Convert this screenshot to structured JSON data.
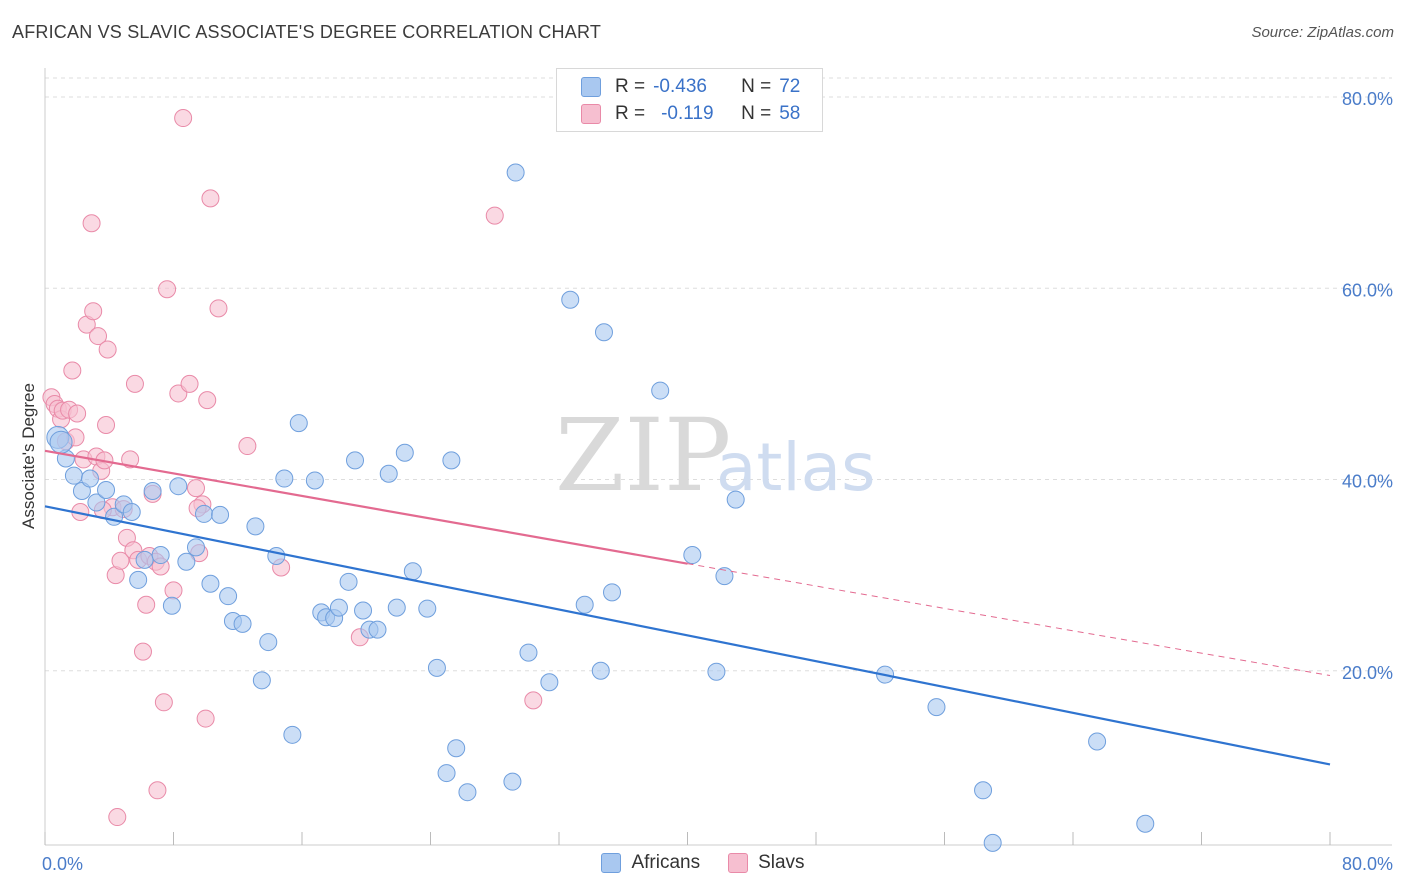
{
  "header": {
    "title": "AFRICAN VS SLAVIC ASSOCIATE'S DEGREE CORRELATION CHART",
    "source": "Source: ZipAtlas.com"
  },
  "legend": {
    "africans": {
      "r_label": "R =",
      "r_value": "-0.436",
      "n_label": "N =",
      "n_value": "72"
    },
    "slavs": {
      "r_label": "R =",
      "r_value": "-0.119",
      "n_label": "N =",
      "n_value": "58"
    }
  },
  "bottom_legend": {
    "africans": "Africans",
    "slavs": "Slavs"
  },
  "watermark": {
    "zip": "ZIP",
    "atlas": "atlas"
  },
  "colors": {
    "africans_fill": "#a9c8f0",
    "africans_stroke": "#6f9fdd",
    "africans_line": "#2f74d0",
    "slavs_fill": "#f6bfd0",
    "slavs_stroke": "#e98aa8",
    "slavs_line": "#e36a90",
    "grid": "#dddddd",
    "tick_text": "#4a7cc9"
  },
  "chart_data": {
    "type": "scatter",
    "title": "AFRICAN VS SLAVIC ASSOCIATE'S DEGREE CORRELATION CHART",
    "xlabel": "",
    "ylabel": "Associate's Degree",
    "xlim": [
      0,
      80
    ],
    "ylim": [
      0,
      80
    ],
    "x_tick_labels": [
      "0.0%",
      "80.0%"
    ],
    "y_tick_labels": [
      "20.0%",
      "40.0%",
      "60.0%",
      "80.0%"
    ],
    "y_ticks": [
      20,
      40,
      60,
      80
    ],
    "grid": true,
    "legend_position": "top-center",
    "series": [
      {
        "name": "Africans",
        "R": -0.436,
        "N": 72,
        "trend": {
          "x": [
            0,
            80
          ],
          "y": [
            37.2,
            10.2
          ],
          "dashed_extension": false
        },
        "points": [
          [
            0.8,
            44.4
          ],
          [
            1.3,
            42.2
          ],
          [
            1.8,
            40.4
          ],
          [
            2.3,
            38.8
          ],
          [
            2.8,
            40.1
          ],
          [
            3.2,
            37.6
          ],
          [
            3.8,
            38.9
          ],
          [
            4.3,
            36.1
          ],
          [
            4.9,
            37.4
          ],
          [
            5.4,
            36.6
          ],
          [
            5.8,
            29.5
          ],
          [
            6.2,
            31.6
          ],
          [
            6.7,
            38.8
          ],
          [
            7.2,
            32.1
          ],
          [
            7.9,
            26.8
          ],
          [
            8.3,
            39.3
          ],
          [
            8.8,
            31.4
          ],
          [
            9.4,
            32.9
          ],
          [
            9.9,
            36.4
          ],
          [
            10.3,
            29.1
          ],
          [
            10.9,
            36.3
          ],
          [
            11.4,
            27.8
          ],
          [
            11.7,
            25.2
          ],
          [
            12.3,
            24.9
          ],
          [
            13.1,
            35.1
          ],
          [
            13.5,
            19.0
          ],
          [
            13.9,
            23.0
          ],
          [
            14.4,
            32.0
          ],
          [
            14.9,
            40.1
          ],
          [
            15.4,
            13.3
          ],
          [
            15.8,
            45.9
          ],
          [
            16.8,
            39.9
          ],
          [
            17.2,
            26.1
          ],
          [
            17.5,
            25.6
          ],
          [
            18.0,
            25.5
          ],
          [
            18.3,
            26.6
          ],
          [
            18.9,
            29.3
          ],
          [
            19.3,
            42.0
          ],
          [
            19.8,
            26.3
          ],
          [
            20.2,
            24.3
          ],
          [
            20.7,
            24.3
          ],
          [
            21.4,
            40.6
          ],
          [
            21.9,
            26.6
          ],
          [
            22.4,
            42.8
          ],
          [
            22.9,
            30.4
          ],
          [
            23.8,
            26.5
          ],
          [
            24.4,
            20.3
          ],
          [
            25.3,
            42.0
          ],
          [
            25.6,
            11.9
          ],
          [
            25.0,
            9.3
          ],
          [
            26.3,
            7.3
          ],
          [
            29.1,
            8.4
          ],
          [
            29.3,
            72.1
          ],
          [
            30.1,
            21.9
          ],
          [
            31.4,
            18.8
          ],
          [
            32.7,
            58.8
          ],
          [
            33.6,
            26.9
          ],
          [
            34.6,
            20.0
          ],
          [
            34.8,
            55.4
          ],
          [
            35.3,
            28.2
          ],
          [
            38.3,
            49.3
          ],
          [
            40.3,
            32.1
          ],
          [
            41.8,
            19.9
          ],
          [
            42.3,
            29.9
          ],
          [
            43.0,
            37.9
          ],
          [
            52.3,
            19.6
          ],
          [
            55.5,
            16.2
          ],
          [
            58.4,
            7.5
          ],
          [
            59.0,
            2.0
          ],
          [
            65.5,
            12.6
          ],
          [
            68.5,
            4.0
          ],
          [
            1.0,
            43.9
          ]
        ]
      },
      {
        "name": "Slavs",
        "R": -0.119,
        "N": 58,
        "trend": {
          "x": [
            0,
            40
          ],
          "y": [
            43.0,
            31.2
          ],
          "dashed_extension": true,
          "dashed_to": {
            "x": 80,
            "y": 19.5
          }
        },
        "points": [
          [
            0.4,
            48.6
          ],
          [
            0.6,
            47.9
          ],
          [
            0.8,
            47.4
          ],
          [
            1.0,
            46.3
          ],
          [
            1.1,
            47.2
          ],
          [
            1.3,
            44.0
          ],
          [
            1.5,
            47.3
          ],
          [
            1.7,
            51.4
          ],
          [
            1.9,
            44.4
          ],
          [
            2.0,
            46.9
          ],
          [
            2.2,
            36.6
          ],
          [
            2.4,
            42.1
          ],
          [
            2.6,
            56.2
          ],
          [
            2.9,
            66.8
          ],
          [
            3.0,
            57.6
          ],
          [
            3.2,
            42.4
          ],
          [
            3.3,
            55.0
          ],
          [
            3.5,
            40.9
          ],
          [
            3.7,
            42.0
          ],
          [
            3.8,
            45.7
          ],
          [
            3.9,
            53.6
          ],
          [
            4.2,
            37.1
          ],
          [
            4.4,
            30.0
          ],
          [
            4.7,
            31.5
          ],
          [
            4.9,
            36.9
          ],
          [
            5.1,
            33.9
          ],
          [
            5.3,
            42.1
          ],
          [
            5.5,
            32.6
          ],
          [
            5.6,
            50.0
          ],
          [
            5.8,
            31.6
          ],
          [
            6.1,
            22.0
          ],
          [
            6.3,
            26.9
          ],
          [
            6.5,
            32.0
          ],
          [
            6.7,
            38.5
          ],
          [
            6.9,
            31.4
          ],
          [
            7.0,
            7.5
          ],
          [
            7.2,
            30.9
          ],
          [
            7.4,
            16.7
          ],
          [
            7.6,
            59.9
          ],
          [
            8.0,
            28.4
          ],
          [
            8.3,
            49.0
          ],
          [
            8.6,
            77.8
          ],
          [
            9.0,
            50.0
          ],
          [
            9.4,
            39.1
          ],
          [
            9.6,
            32.3
          ],
          [
            9.8,
            37.4
          ],
          [
            10.0,
            15.0
          ],
          [
            10.1,
            48.3
          ],
          [
            10.3,
            69.4
          ],
          [
            10.8,
            57.9
          ],
          [
            12.6,
            43.5
          ],
          [
            14.7,
            30.8
          ],
          [
            19.6,
            23.5
          ],
          [
            28.0,
            67.6
          ],
          [
            30.4,
            16.9
          ],
          [
            4.5,
            4.7
          ],
          [
            9.5,
            37.0
          ],
          [
            3.6,
            36.8
          ]
        ]
      }
    ]
  }
}
